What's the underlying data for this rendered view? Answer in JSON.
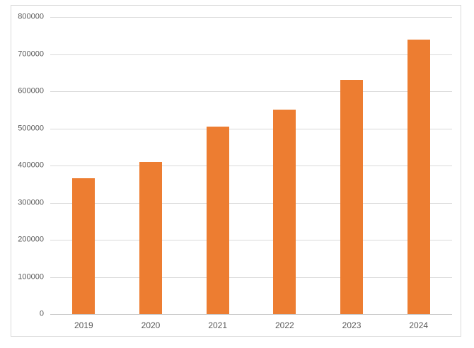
{
  "chart_data": {
    "type": "bar",
    "title": "",
    "xlabel": "",
    "ylabel": "",
    "categories": [
      "2019",
      "2020",
      "2021",
      "2022",
      "2023",
      "2024"
    ],
    "values": [
      365000,
      410000,
      505000,
      550000,
      630000,
      740000
    ],
    "ylim": [
      0,
      800000
    ],
    "ytick_interval": 100000,
    "ytick_labels_top_to_bottom": [
      "800000",
      "700000",
      "600000",
      "500000",
      "400000",
      "300000",
      "200000",
      "100000",
      "0"
    ],
    "grid": true,
    "legend": false,
    "colors": {
      "bar": "#ED7D31",
      "gridline": "#D9D9D9",
      "axis_line": "#C6C6C6",
      "tick_label": "#595959",
      "chart_border": "#D9D9D9",
      "background": "#FFFFFF"
    }
  }
}
